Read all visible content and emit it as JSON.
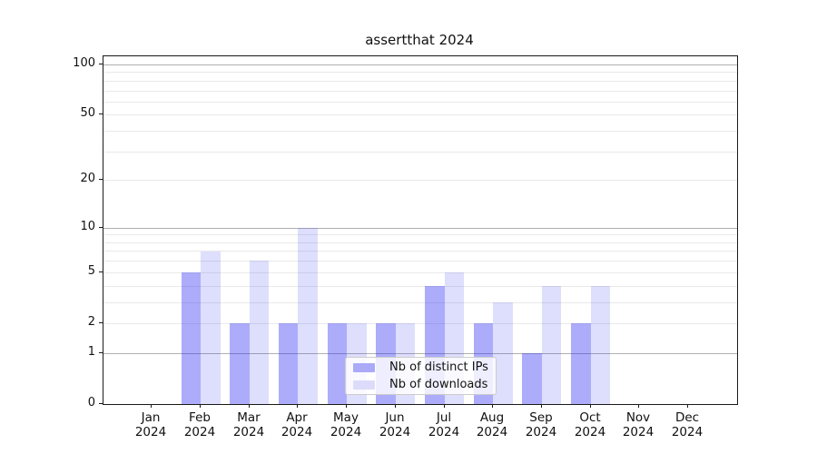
{
  "chart_data": {
    "type": "bar",
    "title": "assertthat 2024",
    "categories": [
      "Jan",
      "Feb",
      "Mar",
      "Apr",
      "May",
      "Jun",
      "Jul",
      "Aug",
      "Sep",
      "Oct",
      "Nov",
      "Dec"
    ],
    "year": "2024",
    "series": [
      {
        "name": "Nb of distinct IPs",
        "fill": "rgba(47,47,244,0.40)",
        "swatch": "#aaaaf9",
        "values": [
          0,
          5,
          2,
          2,
          2,
          2,
          4,
          2,
          1,
          2,
          0,
          0
        ]
      },
      {
        "name": "Nb of downloads",
        "fill": "rgba(47,47,244,0.16)",
        "swatch": "#dcdcfa",
        "values": [
          0,
          7,
          6,
          10,
          2,
          2,
          5,
          3,
          4,
          4,
          0,
          0
        ]
      }
    ],
    "y_axis": {
      "scale": "log1p",
      "ticks": [
        0,
        1,
        2,
        5,
        10,
        20,
        50,
        100
      ],
      "tick_labels": [
        "0",
        "1",
        "2",
        "5",
        "10",
        "20",
        "50",
        "100"
      ],
      "range_top": 111
    },
    "x_axis": {
      "tick_label_format": "month-over-year"
    },
    "grid": {
      "major_values": [
        1,
        10,
        100
      ],
      "minor_values": [
        2,
        3,
        4,
        5,
        6,
        7,
        8,
        9,
        20,
        30,
        40,
        50,
        60,
        70,
        80,
        90
      ],
      "major_color": "#b0b0b0",
      "minor_color": "#e9e9e9"
    },
    "legend": {
      "position": "lower-center-inside"
    }
  }
}
